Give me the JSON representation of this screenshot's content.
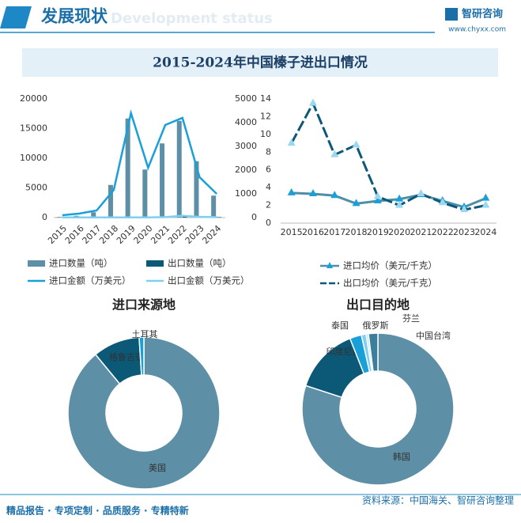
{
  "header": {
    "title": "发展现状",
    "subtitle": "Development status",
    "brand": "智研咨询",
    "site": "www.chyxx.com"
  },
  "title": "2015-2024年中国榛子进出口情况",
  "chart_data": [
    {
      "type": "combo",
      "categories": [
        "2015",
        "2016",
        "2017",
        "2018",
        "2019",
        "2020",
        "2021",
        "2022",
        "2023",
        "2024"
      ],
      "ylim": [
        0,
        20000
      ],
      "yticks": [
        0,
        5000,
        10000,
        15000,
        20000
      ],
      "y2lim": [
        0,
        5000
      ],
      "y2ticks": [
        0,
        1000,
        2000,
        3000,
        4000,
        5000
      ],
      "series": [
        {
          "name": "进口数量（吨）",
          "type": "bar",
          "color": "#5d8fa6",
          "values": [
            100,
            300,
            900,
            5500,
            16700,
            8100,
            12500,
            16300,
            9500,
            3700
          ]
        },
        {
          "name": "出口数量（吨）",
          "type": "bar",
          "color": "#0b5877",
          "values": [
            20,
            30,
            40,
            60,
            80,
            50,
            100,
            300,
            150,
            80
          ]
        },
        {
          "name": "进口金额（万美元）",
          "type": "line",
          "axis": "y2",
          "color": "#1aa0d8",
          "values": [
            100,
            170,
            300,
            1170,
            4400,
            2100,
            3900,
            4200,
            1700,
            1000
          ]
        },
        {
          "name": "出口金额（万美元）",
          "type": "line",
          "axis": "y2",
          "color": "#7fd0f0",
          "values": [
            10,
            10,
            10,
            10,
            10,
            10,
            20,
            80,
            30,
            20
          ]
        }
      ]
    },
    {
      "type": "line",
      "categories": [
        "2015",
        "2016",
        "2017",
        "2018",
        "2019",
        "2020",
        "2021",
        "2022",
        "2023",
        "2024"
      ],
      "ylim": [
        0,
        14
      ],
      "yticks": [
        0,
        2,
        4,
        6,
        8,
        10,
        12,
        14
      ],
      "series": [
        {
          "name": "进口均价（美元/千克）",
          "color": "#4f8ea8",
          "dashed": false,
          "marker_color": "#1aa0d8",
          "values": [
            3.4,
            3.3,
            3.1,
            2.2,
            2.5,
            2.7,
            3.2,
            2.5,
            1.8,
            2.8
          ]
        },
        {
          "name": "出口均价（美元/千克）",
          "color": "#0b5877",
          "dashed": true,
          "marker_color": "#9ad8f2",
          "values": [
            9,
            13.5,
            7.7,
            8.8,
            3,
            2,
            3.3,
            2.3,
            1.5,
            2
          ]
        }
      ]
    },
    {
      "type": "donut",
      "title": "进口来源地",
      "categories": [
        "美国",
        "格鲁吉亚",
        "土耳其"
      ],
      "values": [
        89,
        10,
        1
      ],
      "colors": [
        "#5d8fa6",
        "#0b5877",
        "#1aa0d8"
      ]
    },
    {
      "type": "donut",
      "title": "出口目的地",
      "categories": [
        "韩国",
        "印度尼西亚",
        "泰国",
        "俄罗斯",
        "芬兰",
        "中国台湾"
      ],
      "values": [
        80,
        14,
        2.5,
        1,
        0.5,
        2
      ],
      "colors": [
        "#5d8fa6",
        "#0b5877",
        "#1aa0d8",
        "#7fd0f0",
        "#bfe6f5",
        "#3b7f9c"
      ]
    }
  ],
  "footer": {
    "left": "精品报告 · 专项定制 · 品质服务 · 专精特新",
    "source": "资料来源：中国海关、智研咨询整理"
  }
}
